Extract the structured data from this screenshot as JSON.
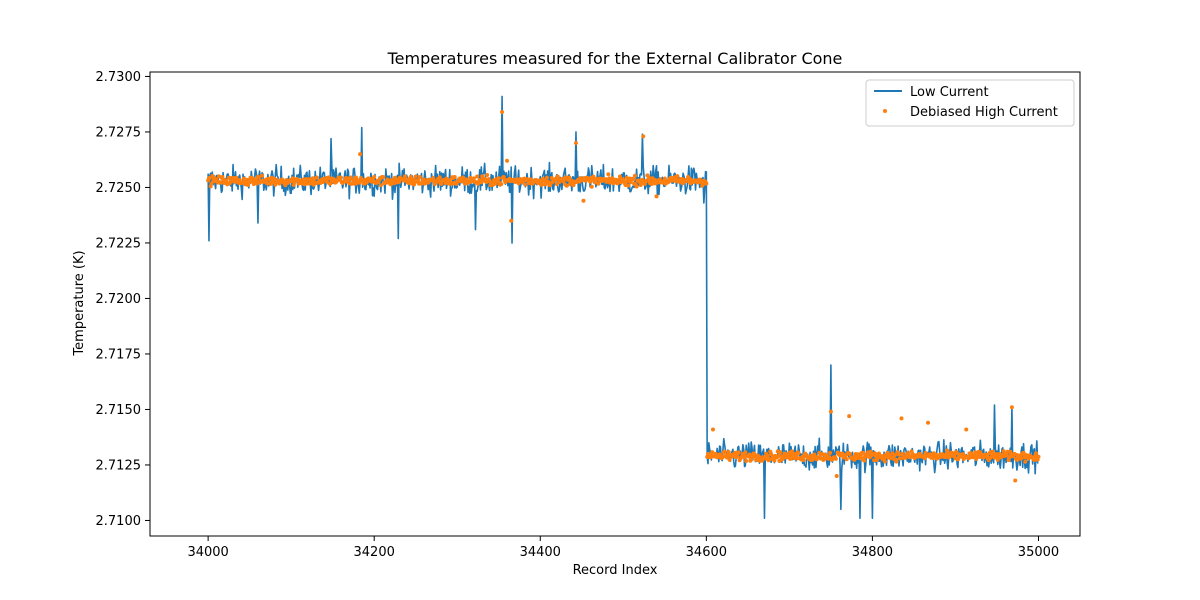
{
  "chart_data": {
    "type": "line",
    "title": "Temperatures measured for the External Calibrator Cone",
    "xlabel": "Record Index",
    "ylabel": "Temperature (K)",
    "xlim": [
      33930,
      35050
    ],
    "ylim": [
      2.7093,
      2.7302
    ],
    "xticks": [
      34000,
      34200,
      34400,
      34600,
      34800,
      35000
    ],
    "xtick_labels": [
      "34000",
      "34200",
      "34400",
      "34600",
      "34800",
      "35000"
    ],
    "yticks": [
      2.71,
      2.7125,
      2.715,
      2.7175,
      2.72,
      2.7225,
      2.725,
      2.7275,
      2.73
    ],
    "ytick_labels": [
      "2.7100",
      "2.7125",
      "2.7150",
      "2.7175",
      "2.7200",
      "2.7225",
      "2.7250",
      "2.7275",
      "2.7300"
    ],
    "grid": false,
    "legend_position": "top-right",
    "step_index": 34600,
    "series": [
      {
        "name": "Low Current",
        "kind": "line",
        "color": "#1f77b4",
        "x_start": 34000,
        "x_end": 35000,
        "x_step": 1,
        "level_before": 2.7253,
        "level_after": 2.7129,
        "noise_amplitude": 0.0011,
        "spikes": [
          {
            "x": 34001,
            "y": 2.7226
          },
          {
            "x": 34060,
            "y": 2.7234
          },
          {
            "x": 34148,
            "y": 2.7272
          },
          {
            "x": 34185,
            "y": 2.7277
          },
          {
            "x": 34229,
            "y": 2.7227
          },
          {
            "x": 34322,
            "y": 2.7231
          },
          {
            "x": 34354,
            "y": 2.7291
          },
          {
            "x": 34366,
            "y": 2.7225
          },
          {
            "x": 34443,
            "y": 2.7275
          },
          {
            "x": 34523,
            "y": 2.7274
          },
          {
            "x": 34597,
            "y": 2.7243
          },
          {
            "x": 34670,
            "y": 2.7101
          },
          {
            "x": 34750,
            "y": 2.717
          },
          {
            "x": 34762,
            "y": 2.7105
          },
          {
            "x": 34785,
            "y": 2.7101
          },
          {
            "x": 34800,
            "y": 2.7101
          },
          {
            "x": 34947,
            "y": 2.7152
          },
          {
            "x": 34968,
            "y": 2.7151
          }
        ]
      },
      {
        "name": "Debiased High Current",
        "kind": "scatter",
        "color": "#ff7f0e",
        "x_start": 34000,
        "x_end": 35000,
        "x_step": 1,
        "level_before": 2.7253,
        "level_after": 2.7129,
        "noise_amplitude": 0.00035,
        "outliers": [
          {
            "x": 34183,
            "y": 2.7265
          },
          {
            "x": 34354,
            "y": 2.7284
          },
          {
            "x": 34360,
            "y": 2.7262
          },
          {
            "x": 34365,
            "y": 2.7235
          },
          {
            "x": 34443,
            "y": 2.727
          },
          {
            "x": 34452,
            "y": 2.7244
          },
          {
            "x": 34524,
            "y": 2.7273
          },
          {
            "x": 34540,
            "y": 2.7246
          },
          {
            "x": 34608,
            "y": 2.7141
          },
          {
            "x": 34750,
            "y": 2.7149
          },
          {
            "x": 34757,
            "y": 2.712
          },
          {
            "x": 34772,
            "y": 2.7147
          },
          {
            "x": 34835,
            "y": 2.7146
          },
          {
            "x": 34867,
            "y": 2.7144
          },
          {
            "x": 34913,
            "y": 2.7141
          },
          {
            "x": 34968,
            "y": 2.7151
          },
          {
            "x": 34972,
            "y": 2.7118
          }
        ]
      }
    ]
  }
}
